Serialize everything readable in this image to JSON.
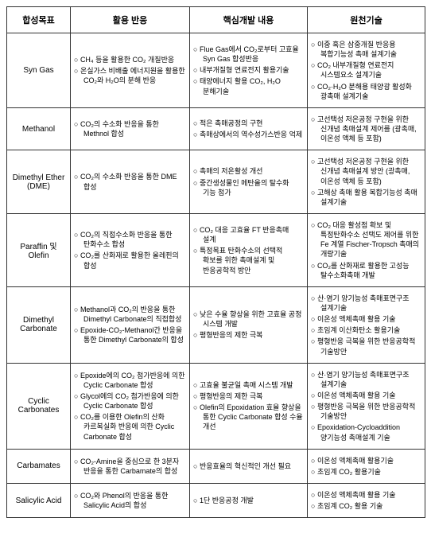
{
  "headers": [
    "합성목표",
    "활용 반응",
    "핵심개발 내용",
    "원천기술"
  ],
  "rows": [
    {
      "name": "Syn Gas",
      "reaction": [
        "CH₄ 등을 활용한 CO₂ 개질반응",
        "온실가스 비배출 에너지원을 활용한 CO₂와 H₂O의 분해 반응"
      ],
      "core": [
        "Flue Gas에서 CO₂로부터 고효율 Syn Gas 합성반응",
        "내부개질형 연료전지 활용기술",
        "태양에너지 활용 CO₂, H₂O 분해기술"
      ],
      "tech": [
        "이중 혹은 삼중개질 반응용 복합기능성 촉매 설계기술",
        "CO₂ 내부개질형 연료전지 시스템요소 설계기술",
        "CO₂·H₂O 분해용 태양광 활성화 광촉매 설계기술"
      ]
    },
    {
      "name": "Methanol",
      "reaction": [
        "CO₂의 수소화 반응을 통한 Methnol 합성"
      ],
      "core": [
        "적은 촉매공정의 구현",
        "촉매상에서의 역수성가스반응 억제"
      ],
      "tech": [
        "고선택성 저온공정 구현을 위한 신개념 촉매설계 제어를 (광촉매, 이온성 액체 등 포함)"
      ]
    },
    {
      "name": "Dimethyl Ether (DME)",
      "reaction": [
        "CO₂의 수소화 반응을 통한 DME 합성"
      ],
      "core": [
        "촉매의 저온활성 개선",
        "중간생성물인 메탄올의 탈수화 기능 첨가"
      ],
      "tech": [
        "고선택성 저온공정 구현을 위한 신개념 촉매설계 방안 (광촉매, 이온성 액체 등 포함)",
        "고해상 촉매 활용 복합기능성 촉매 설계기술"
      ]
    },
    {
      "name": "Paraffin 및 Olefin",
      "reaction": [
        "CO₂의 직접수소화 반응을 통한 탄화수소 합성",
        "CO₂를 산화재로 활용한 올레핀의 합성"
      ],
      "core": [
        "CO₂ 대응 고효율 FT 반응촉매 설계",
        "특정목표 탄화수소의 선택적 확보를 위한 촉매설계 및 반응공학적 방안"
      ],
      "tech": [
        "CO₂ 대응 활성점 확보 및 특정탄화수소 선택도 제어를 위한 Fe 계열 Fischer-Tropsch 촉매의 개량기술",
        "CO₂를 산화재로 활용한 고성능 탈수소화촉매 개발"
      ]
    },
    {
      "name": "Dimethyl Carbonate",
      "reaction": [
        "Methanol과 CO₂의 반응을 통한 Dimethyl Carbonate의 직접합성",
        "Epoxide-CO₂-Methanol간 반응을 통한 Dimethyl Carbonate의 합성"
      ],
      "core": [
        "낮은 수율 향상을 위한 고효율 공정 시스템 개발",
        "평형반응의 제한 극복"
      ],
      "tech": [
        "산·염기 양기능성 촉매표면구조 설계기술",
        "이온성 액체촉매 활용 기술",
        "초임계 이산화탄소 활용기술",
        "평형반응 극복을 위한 반응공학적 기술방안"
      ]
    },
    {
      "name": "Cyclic Carbonates",
      "reaction": [
        "Epoxide에의 CO₂ 첨가반응에 의한 Cyclic Carbonate 합성",
        "Glycol에의 CO₂ 첨가반응에 의한 Cyclic Carbonate 합성",
        "CO₂를 이용한 Olefin의 산화 카르복실화 반응에 의한 Cyclic Carbonate 합성"
      ],
      "core": [
        "고효율 불균일 촉매 시스템 개발",
        "평형반응의 제한 극복",
        "Olefin의 Epoxidation 효율 향상을 통한 Cyclic Carbonate 합성 수율 개선"
      ],
      "tech": [
        "산·염기 양기능성 촉매표면구조 설계기술",
        "이온성 액체촉매 활용 기술",
        "평형반응 극복을 위한 반응공학적 기술방안",
        "Epoxidation-Cycloaddition 양기능성 촉매설계 기술"
      ]
    },
    {
      "name": "Carbamates",
      "reaction": [
        "CO₂-Amine을 중심으로 한 3분자 반응을 통한 Carbamate의 합성"
      ],
      "core": [
        "반응효율의 혁신적인 개선 필요"
      ],
      "tech": [
        "이온성 액체촉매 활용기술",
        "초임계 CO₂ 활용기술"
      ]
    },
    {
      "name": "Salicylic Acid",
      "reaction": [
        "CO₂와 Phenol의 반응을 통한 Salicylic Acid의 합성"
      ],
      "core": [
        "1단 반응공정 개발"
      ],
      "tech": [
        "이온성 액체촉매 활용 기술",
        "초임계 CO₂ 활용 기술"
      ]
    }
  ]
}
